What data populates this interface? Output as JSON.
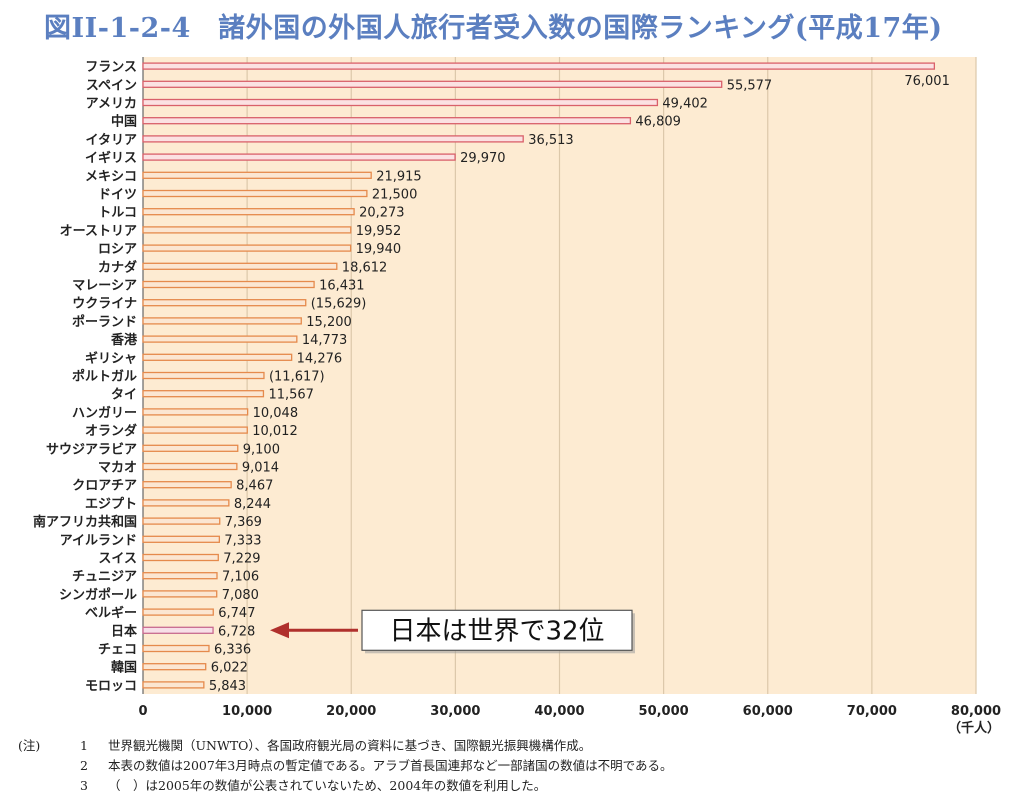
{
  "title": "図II-1-2-4　諸外国の外国人旅行者受入数の国際ランキング(平成17年)",
  "chart_data": {
    "type": "bar",
    "orientation": "horizontal",
    "categories": [
      "フランス",
      "スペイン",
      "アメリカ",
      "中国",
      "イタリア",
      "イギリス",
      "メキシコ",
      "ドイツ",
      "トルコ",
      "オーストリア",
      "ロシア",
      "カナダ",
      "マレーシア",
      "ウクライナ",
      "ポーランド",
      "香港",
      "ギリシャ",
      "ポルトガル",
      "タイ",
      "ハンガリー",
      "オランダ",
      "サウジアラビア",
      "マカオ",
      "クロアチア",
      "エジプト",
      "南アフリカ共和国",
      "アイルランド",
      "スイス",
      "チュニジア",
      "シンガポール",
      "ベルギー",
      "日本",
      "チェコ",
      "韓国",
      "モロッコ"
    ],
    "values": [
      76001,
      55577,
      49402,
      46809,
      36513,
      29970,
      21915,
      21500,
      20273,
      19952,
      19940,
      18612,
      16431,
      15629,
      15200,
      14773,
      14276,
      11617,
      11567,
      10048,
      10012,
      9100,
      9014,
      8467,
      8244,
      7369,
      7333,
      7229,
      7106,
      7080,
      6747,
      6728,
      6336,
      6022,
      5843
    ],
    "value_labels": [
      "76,001",
      "55,577",
      "49,402",
      "46,809",
      "36,513",
      "29,970",
      "21,915",
      "21,500",
      "20,273",
      "19,952",
      "19,940",
      "18,612",
      "16,431",
      "(15,629)",
      "15,200",
      "14,773",
      "14,276",
      "(11,617)",
      "11,567",
      "10,048",
      "10,012",
      "9,100",
      "9,014",
      "8,467",
      "8,244",
      "7,369",
      "7,333",
      "7,229",
      "7,106",
      "7,080",
      "6,747",
      "6,728",
      "6,336",
      "6,022",
      "5,843"
    ],
    "xlim": [
      0,
      80000
    ],
    "x_ticks": [
      "0",
      "10,000",
      "20,000",
      "30,000",
      "40,000",
      "50,000",
      "60,000",
      "70,000",
      "80,000"
    ],
    "x_unit": "（千人）",
    "grid": true,
    "highlight_category": "日本",
    "annotation": "日本は世界で32位",
    "colors": {
      "plot_background": "#fdebd2",
      "top_bar_fill": "#fbe1e2",
      "top_bar_stroke": "#d9606a",
      "bar_fill": "#fbe6d2",
      "bar_stroke": "#e58a4c",
      "highlight_fill": "#f7dfe8",
      "highlight_stroke": "#c86a8f",
      "annotation_arrow": "#b0302c",
      "grid": "#dcc8aa"
    }
  },
  "notes": {
    "lead": "(注)",
    "items": [
      {
        "num": "1",
        "text": "世界観光機関（UNWTO）、各国政府観光局の資料に基づき、国際観光振興機構作成。"
      },
      {
        "num": "2",
        "text": "本表の数値は2007年3月時点の暫定値である。アラブ首長国連邦など一部諸国の数値は不明である。"
      },
      {
        "num": "3",
        "text": "（　）は2005年の数値が公表されていないため、2004年の数値を利用した。"
      }
    ]
  }
}
